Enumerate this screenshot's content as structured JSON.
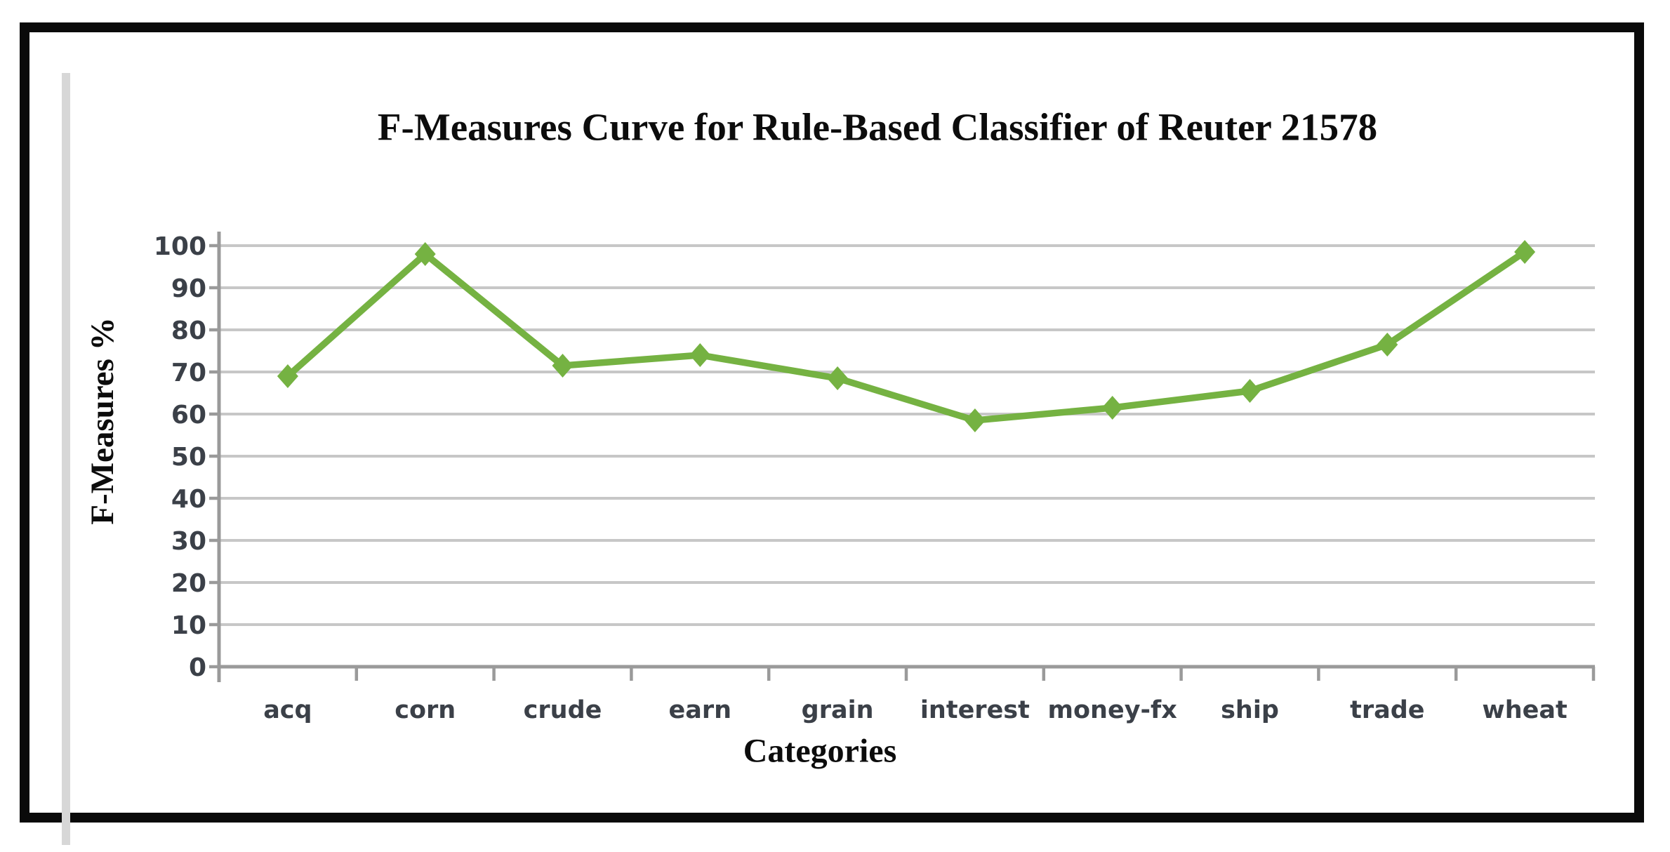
{
  "chart_data": {
    "type": "line",
    "title": "F-Measures Curve for Rule-Based Classifier of Reuter 21578",
    "xlabel": "Categories",
    "ylabel": "F-Measures %",
    "categories": [
      "acq",
      "corn",
      "crude",
      "earn",
      "grain",
      "interest",
      "money-fx",
      "ship",
      "trade",
      "wheat"
    ],
    "values": [
      69,
      98,
      71.5,
      74,
      68.5,
      58.5,
      61.5,
      65.5,
      76.5,
      98.5
    ],
    "ylim": [
      0,
      100
    ],
    "y_ticks": [
      0,
      10,
      20,
      30,
      40,
      50,
      60,
      70,
      80,
      90,
      100
    ],
    "grid": "horizontal",
    "legend": "none",
    "marker": "diamond",
    "colors": {
      "line": "#75B242",
      "marker": "#75B242",
      "gridline": "#C7C7C7",
      "axis": "#9A9A9A",
      "tick_label": "#3B4048",
      "title_text": "#0C0C0C",
      "frame_border": "#0A0A0A"
    }
  }
}
